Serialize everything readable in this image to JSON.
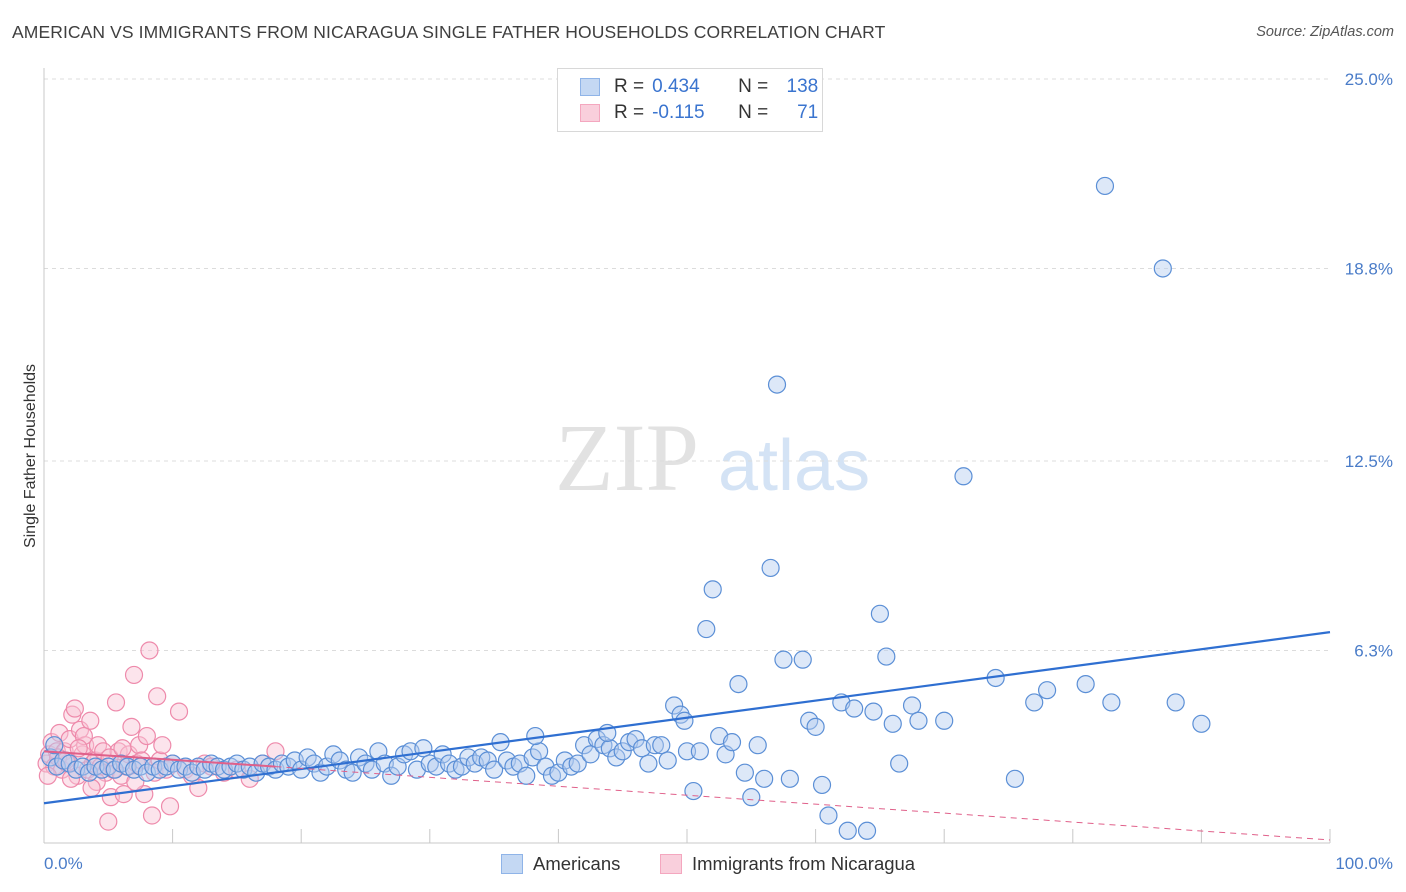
{
  "title": "AMERICAN VS IMMIGRANTS FROM NICARAGUA SINGLE FATHER HOUSEHOLDS CORRELATION CHART",
  "source": "Source: ZipAtlas.com",
  "watermark": {
    "zip": "ZIP",
    "atlas": "atlas"
  },
  "legend": {
    "rows": [
      {
        "r_label": "R =",
        "r_value": "0.434",
        "n_label": "N =",
        "n_value": "138",
        "color": "#8fb4e8"
      },
      {
        "r_label": "R =",
        "r_value": "-0.115",
        "n_label": "N =",
        "n_value": "71",
        "color": "#f4a7bf"
      }
    ]
  },
  "bottom_legend": [
    "Americans",
    "Immigrants from Nicaragua"
  ],
  "colors": {
    "blue": "#5b8fd6",
    "blue_line": "#2f6fd1",
    "pink": "#ee8aab",
    "pink_line": "#e0608a",
    "tick_text": "#4a7cc8"
  },
  "chart_data": {
    "type": "scatter",
    "title": "AMERICAN VS IMMIGRANTS FROM NICARAGUA SINGLE FATHER HOUSEHOLDS CORRELATION CHART",
    "xlabel": "",
    "ylabel": "Single Father Households",
    "xlim": [
      0,
      100
    ],
    "ylim": [
      0,
      25
    ],
    "x_tick_labels": [
      "0.0%",
      "100.0%"
    ],
    "y_ticks": [
      6.3,
      12.5,
      18.8,
      25.0
    ],
    "y_tick_labels": [
      "6.3%",
      "12.5%",
      "18.8%",
      "25.0%"
    ],
    "grid": true,
    "legend_position": "top-center",
    "series": [
      {
        "name": "Americans",
        "color": "#5b8fd6",
        "trend": {
          "x": [
            0,
            100
          ],
          "y": [
            1.3,
            6.9
          ]
        },
        "points": [
          [
            0.5,
            2.8
          ],
          [
            0.8,
            3.2
          ],
          [
            1.0,
            2.5
          ],
          [
            1.5,
            2.7
          ],
          [
            2.0,
            2.6
          ],
          [
            2.5,
            2.4
          ],
          [
            3.0,
            2.5
          ],
          [
            3.5,
            2.3
          ],
          [
            4.0,
            2.5
          ],
          [
            4.5,
            2.4
          ],
          [
            5.0,
            2.5
          ],
          [
            5.5,
            2.4
          ],
          [
            6.0,
            2.6
          ],
          [
            6.5,
            2.5
          ],
          [
            7.0,
            2.4
          ],
          [
            7.5,
            2.5
          ],
          [
            8.0,
            2.3
          ],
          [
            8.5,
            2.5
          ],
          [
            9.0,
            2.4
          ],
          [
            9.5,
            2.5
          ],
          [
            10.0,
            2.6
          ],
          [
            10.5,
            2.4
          ],
          [
            11.0,
            2.5
          ],
          [
            11.5,
            2.3
          ],
          [
            12.0,
            2.5
          ],
          [
            12.5,
            2.4
          ],
          [
            13.0,
            2.6
          ],
          [
            13.5,
            2.5
          ],
          [
            14.0,
            2.4
          ],
          [
            14.5,
            2.5
          ],
          [
            15.0,
            2.6
          ],
          [
            15.5,
            2.4
          ],
          [
            16.0,
            2.5
          ],
          [
            16.5,
            2.3
          ],
          [
            17.0,
            2.6
          ],
          [
            17.5,
            2.5
          ],
          [
            18.0,
            2.4
          ],
          [
            18.5,
            2.6
          ],
          [
            19.0,
            2.5
          ],
          [
            19.5,
            2.7
          ],
          [
            20.0,
            2.4
          ],
          [
            20.5,
            2.8
          ],
          [
            21.0,
            2.6
          ],
          [
            21.5,
            2.3
          ],
          [
            22.0,
            2.5
          ],
          [
            22.5,
            2.9
          ],
          [
            23.0,
            2.7
          ],
          [
            23.5,
            2.4
          ],
          [
            24.0,
            2.3
          ],
          [
            24.5,
            2.8
          ],
          [
            25.0,
            2.6
          ],
          [
            25.5,
            2.4
          ],
          [
            26.0,
            3.0
          ],
          [
            26.5,
            2.6
          ],
          [
            27.0,
            2.2
          ],
          [
            27.5,
            2.5
          ],
          [
            28.0,
            2.9
          ],
          [
            28.5,
            3.0
          ],
          [
            29.0,
            2.4
          ],
          [
            29.5,
            3.1
          ],
          [
            30.0,
            2.6
          ],
          [
            30.5,
            2.5
          ],
          [
            31.0,
            2.9
          ],
          [
            31.5,
            2.6
          ],
          [
            32.0,
            2.4
          ],
          [
            32.5,
            2.5
          ],
          [
            33.0,
            2.8
          ],
          [
            33.5,
            2.6
          ],
          [
            34.0,
            2.8
          ],
          [
            34.5,
            2.7
          ],
          [
            35.0,
            2.4
          ],
          [
            35.5,
            3.3
          ],
          [
            36.0,
            2.7
          ],
          [
            36.5,
            2.5
          ],
          [
            37.0,
            2.6
          ],
          [
            37.5,
            2.2
          ],
          [
            38.0,
            2.8
          ],
          [
            38.5,
            3.0
          ],
          [
            39.0,
            2.5
          ],
          [
            39.5,
            2.2
          ],
          [
            40.0,
            2.3
          ],
          [
            40.5,
            2.7
          ],
          [
            41.0,
            2.5
          ],
          [
            41.5,
            2.6
          ],
          [
            42.0,
            3.2
          ],
          [
            42.5,
            2.9
          ],
          [
            43.0,
            3.4
          ],
          [
            43.5,
            3.2
          ],
          [
            44.0,
            3.1
          ],
          [
            44.5,
            2.8
          ],
          [
            45.0,
            3.0
          ],
          [
            45.5,
            3.3
          ],
          [
            46.0,
            3.4
          ],
          [
            46.5,
            3.1
          ],
          [
            47.0,
            2.6
          ],
          [
            47.5,
            3.2
          ],
          [
            48.0,
            3.2
          ],
          [
            48.5,
            2.7
          ],
          [
            49.0,
            4.5
          ],
          [
            49.5,
            4.2
          ],
          [
            50.0,
            3.0
          ],
          [
            50.5,
            1.7
          ],
          [
            51.0,
            3.0
          ],
          [
            51.5,
            7.0
          ],
          [
            52.0,
            8.3
          ],
          [
            52.5,
            3.5
          ],
          [
            53.0,
            2.9
          ],
          [
            53.5,
            3.3
          ],
          [
            54.0,
            5.2
          ],
          [
            54.5,
            2.3
          ],
          [
            55.0,
            1.5
          ],
          [
            55.5,
            3.2
          ],
          [
            56.0,
            2.1
          ],
          [
            56.5,
            9.0
          ],
          [
            57.0,
            15.0
          ],
          [
            57.5,
            6.0
          ],
          [
            58.0,
            2.1
          ],
          [
            59.0,
            6.0
          ],
          [
            59.5,
            4.0
          ],
          [
            60.0,
            3.8
          ],
          [
            60.5,
            1.9
          ],
          [
            61.0,
            0.9
          ],
          [
            62.0,
            4.6
          ],
          [
            62.5,
            0.4
          ],
          [
            63.0,
            4.4
          ],
          [
            64.0,
            0.4
          ],
          [
            64.5,
            4.3
          ],
          [
            65.0,
            7.5
          ],
          [
            65.5,
            6.1
          ],
          [
            66.0,
            3.9
          ],
          [
            66.5,
            2.6
          ],
          [
            67.5,
            4.5
          ],
          [
            68.0,
            4.0
          ],
          [
            70.0,
            4.0
          ],
          [
            71.5,
            12.0
          ],
          [
            74.0,
            5.4
          ],
          [
            75.5,
            2.1
          ],
          [
            77.0,
            4.6
          ],
          [
            78.0,
            5.0
          ],
          [
            81.0,
            5.2
          ],
          [
            83.0,
            4.6
          ],
          [
            87.0,
            18.8
          ],
          [
            88.0,
            4.6
          ],
          [
            90.0,
            3.9
          ],
          [
            82.5,
            21.5
          ],
          [
            49.8,
            4.0
          ],
          [
            43.8,
            3.6
          ],
          [
            38.2,
            3.5
          ]
        ]
      },
      {
        "name": "Immigrants from Nicaragua",
        "color": "#ee8aab",
        "trend": {
          "x": [
            0,
            18,
            100
          ],
          "y": [
            3.0,
            2.5,
            0.1
          ]
        },
        "points": [
          [
            0.2,
            2.6
          ],
          [
            0.4,
            2.9
          ],
          [
            0.6,
            3.3
          ],
          [
            0.8,
            2.5
          ],
          [
            1.0,
            3.0
          ],
          [
            1.2,
            3.6
          ],
          [
            1.4,
            2.4
          ],
          [
            1.6,
            3.0
          ],
          [
            1.8,
            2.6
          ],
          [
            2.0,
            3.4
          ],
          [
            2.2,
            4.2
          ],
          [
            2.4,
            4.4
          ],
          [
            2.6,
            2.2
          ],
          [
            2.8,
            3.7
          ],
          [
            3.0,
            2.9
          ],
          [
            3.2,
            3.2
          ],
          [
            3.4,
            2.4
          ],
          [
            3.6,
            4.0
          ],
          [
            3.8,
            2.6
          ],
          [
            4.0,
            2.7
          ],
          [
            4.2,
            3.2
          ],
          [
            4.4,
            2.5
          ],
          [
            4.6,
            3.0
          ],
          [
            4.8,
            2.3
          ],
          [
            5.0,
            0.7
          ],
          [
            5.2,
            1.5
          ],
          [
            5.4,
            2.4
          ],
          [
            5.6,
            4.6
          ],
          [
            5.8,
            3.0
          ],
          [
            6.0,
            2.2
          ],
          [
            6.2,
            1.6
          ],
          [
            6.4,
            2.5
          ],
          [
            6.6,
            2.9
          ],
          [
            6.8,
            3.8
          ],
          [
            7.0,
            5.5
          ],
          [
            7.2,
            2.6
          ],
          [
            7.4,
            3.2
          ],
          [
            7.6,
            2.7
          ],
          [
            7.8,
            1.6
          ],
          [
            8.0,
            3.5
          ],
          [
            8.2,
            6.3
          ],
          [
            8.4,
            0.9
          ],
          [
            8.6,
            2.3
          ],
          [
            8.8,
            4.8
          ],
          [
            9.0,
            2.7
          ],
          [
            9.2,
            3.2
          ],
          [
            9.5,
            2.4
          ],
          [
            9.8,
            1.2
          ],
          [
            10.0,
            2.6
          ],
          [
            10.5,
            4.3
          ],
          [
            11.0,
            2.4
          ],
          [
            11.5,
            2.2
          ],
          [
            12.0,
            1.8
          ],
          [
            12.5,
            2.6
          ],
          [
            13.0,
            2.5
          ],
          [
            14.0,
            2.3
          ],
          [
            15.0,
            2.4
          ],
          [
            16.0,
            2.1
          ],
          [
            17.0,
            2.6
          ],
          [
            18.0,
            3.0
          ],
          [
            1.1,
            2.8
          ],
          [
            2.1,
            2.1
          ],
          [
            3.1,
            3.5
          ],
          [
            4.1,
            2.0
          ],
          [
            5.1,
            2.8
          ],
          [
            6.1,
            3.1
          ],
          [
            7.1,
            2.0
          ],
          [
            0.3,
            2.2
          ],
          [
            1.7,
            2.7
          ],
          [
            2.7,
            3.1
          ],
          [
            3.7,
            1.8
          ]
        ]
      }
    ]
  }
}
